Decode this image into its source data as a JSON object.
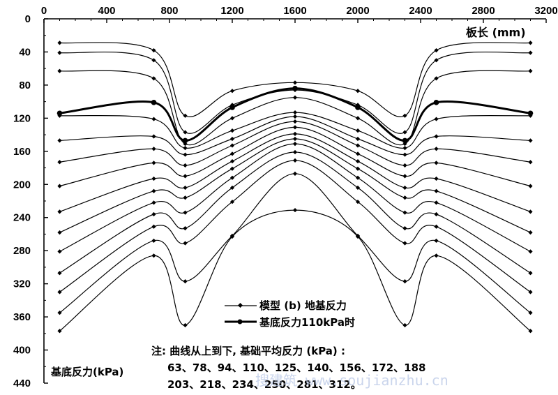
{
  "chart_data": {
    "type": "line",
    "x_unit_label": "板长 (mm)",
    "y_axis_title": "基底反力(kPa)",
    "xlim": [
      0,
      3200
    ],
    "ylim": [
      0,
      440
    ],
    "y_inverted": true,
    "xticks": [
      0,
      400,
      800,
      1200,
      1600,
      2000,
      2400,
      2800,
      3200
    ],
    "yticks": [
      0,
      40,
      80,
      120,
      160,
      200,
      240,
      280,
      320,
      360,
      400,
      440
    ],
    "x": [
      100,
      700,
      900,
      1200,
      1600,
      2000,
      2300,
      2500,
      3100
    ],
    "series": [
      {
        "values": [
          29,
          38,
          117,
          87,
          77,
          87,
          117,
          38,
          29
        ]
      },
      {
        "values": [
          41,
          50,
          137,
          104,
          86,
          104,
          137,
          50,
          41
        ]
      },
      {
        "values": [
          63,
          72,
          151,
          120,
          95,
          120,
          151,
          72,
          63
        ]
      },
      {
        "values": [
          117,
          121,
          156,
          135,
          113,
          135,
          156,
          121,
          117
        ]
      },
      {
        "values": [
          147,
          142,
          164,
          145,
          118,
          145,
          164,
          142,
          147
        ]
      },
      {
        "values": [
          173,
          157,
          177,
          153,
          124,
          153,
          177,
          157,
          173
        ]
      },
      {
        "values": [
          202,
          174,
          190,
          163,
          131,
          163,
          190,
          174,
          202
        ]
      },
      {
        "values": [
          233,
          193,
          204,
          172,
          139,
          172,
          204,
          193,
          233
        ]
      },
      {
        "values": [
          258,
          208,
          216,
          181,
          145,
          181,
          216,
          208,
          258
        ]
      },
      {
        "values": [
          281,
          222,
          234,
          192,
          151,
          192,
          234,
          222,
          281
        ]
      },
      {
        "values": [
          307,
          236,
          253,
          204,
          161,
          204,
          253,
          236,
          307
        ]
      },
      {
        "values": [
          330,
          251,
          271,
          221,
          171,
          221,
          271,
          251,
          330
        ]
      },
      {
        "values": [
          355,
          268,
          317,
          262,
          187,
          262,
          317,
          268,
          355
        ]
      },
      {
        "values": [
          377,
          286,
          370,
          263,
          231,
          263,
          370,
          286,
          377
        ]
      }
    ],
    "highlight_series": {
      "values": [
        114,
        101,
        147,
        107,
        84,
        107,
        147,
        101,
        114
      ]
    },
    "legend": [
      {
        "label": "模型 (b) 地基反力",
        "style": "thin-diamond"
      },
      {
        "label": "基底反力110kPa时",
        "style": "bold-circle"
      }
    ],
    "note_lines": [
      "注: 曲线从上到下, 基础平均反力 (kPa) :",
      "63、78、94、110、125、140、156、172、188",
      "203、218、234、250、281、312。"
    ],
    "watermark": "搜建筑 www.soujianzhu.cn",
    "colors": {
      "line": "#000000",
      "background": "#ffffff",
      "watermark": "#b9c7e6"
    }
  }
}
